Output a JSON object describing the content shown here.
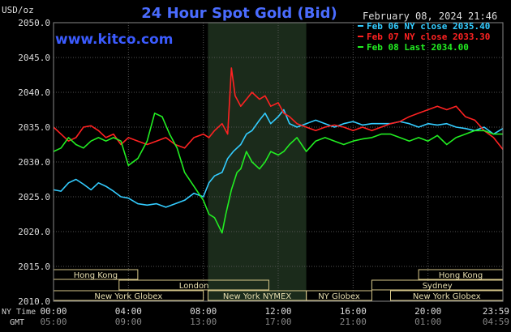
{
  "chart_data": {
    "type": "line",
    "title": "24 Hour Spot Gold (Bid)",
    "ylabel": "USD/oz",
    "date_label": "February 08, 2024 21:46",
    "source": "www.kitco.com",
    "ylim": [
      2010,
      2050
    ],
    "xlim": [
      0,
      24
    ],
    "y_ticks": [
      "2050.0",
      "2045.0",
      "2040.0",
      "2035.0",
      "2030.0",
      "2025.0",
      "2020.0",
      "2015.0",
      "2010.0"
    ],
    "y_tick_values": [
      2050,
      2045,
      2040,
      2035,
      2030,
      2025,
      2020,
      2015,
      2010
    ],
    "x_ticks_ny": [
      "00:00",
      "04:00",
      "08:00",
      "12:00",
      "16:00",
      "20:00",
      "23:59"
    ],
    "x_ticks_gmt": [
      "05:00",
      "09:00",
      "13:00",
      "17:00",
      "21:00",
      "01:00",
      "04:59"
    ],
    "x_tick_hours": [
      0,
      4,
      8,
      12,
      16,
      20,
      24
    ],
    "row_label_ny": "NY Time",
    "row_label_gmt": "GMT",
    "highlight_hours": [
      8.25,
      13.5
    ],
    "legend": [
      {
        "label": "Feb 06 NY close 2035.40",
        "color": "#33ccff"
      },
      {
        "label": "Feb 07 NY close 2033.30",
        "color": "#ff2222"
      },
      {
        "label": "Feb 08 Last 2034.00",
        "color": "#22ee22"
      }
    ],
    "sessions": [
      {
        "name": "Hong Kong",
        "start": 0,
        "end": 4.5,
        "row": 0
      },
      {
        "name": "Hong Kong",
        "start": 19.5,
        "end": 24,
        "row": 0
      },
      {
        "name": "London",
        "start": 3.5,
        "end": 11.5,
        "row": 1
      },
      {
        "name": "Sydney",
        "start": 17.0,
        "end": 24,
        "row": 1
      },
      {
        "name": "New York Globex",
        "start": 0,
        "end": 8.0,
        "row": 2
      },
      {
        "name": "New York NYMEX",
        "start": 8.25,
        "end": 13.5,
        "row": 2
      },
      {
        "name": "NY Globex",
        "start": 13.5,
        "end": 17.0,
        "row": 2
      },
      {
        "name": "New York Globex",
        "start": 18.0,
        "end": 24,
        "row": 2
      }
    ],
    "series": [
      {
        "name": "Feb 06 NY close 2035.40",
        "color": "#33ccff",
        "x": [
          0,
          0.4,
          0.8,
          1.2,
          1.6,
          2.0,
          2.4,
          2.8,
          3.2,
          3.6,
          4.0,
          4.5,
          5.0,
          5.5,
          6.0,
          6.5,
          7.0,
          7.5,
          8.0,
          8.3,
          8.6,
          9.0,
          9.3,
          9.6,
          10.0,
          10.3,
          10.6,
          11.0,
          11.3,
          11.6,
          12.0,
          12.3,
          12.6,
          13.0,
          13.5,
          14.0,
          14.5,
          15.0,
          15.5,
          16.0,
          16.5,
          17.0,
          17.5,
          18.0,
          18.5,
          19.0,
          19.5,
          20.0,
          20.5,
          21.0,
          21.5,
          22.0,
          22.5,
          23.0,
          23.5,
          24.0
        ],
        "y": [
          2026.0,
          2025.8,
          2027.0,
          2027.5,
          2026.8,
          2026.0,
          2027.0,
          2026.5,
          2025.8,
          2025.0,
          2024.8,
          2024.0,
          2023.8,
          2024.0,
          2023.5,
          2024.0,
          2024.5,
          2025.5,
          2025.0,
          2027.0,
          2028.0,
          2028.5,
          2030.5,
          2031.5,
          2032.5,
          2034.0,
          2034.5,
          2036.0,
          2037.0,
          2035.5,
          2036.5,
          2037.5,
          2035.5,
          2035.0,
          2035.5,
          2036.0,
          2035.5,
          2035.0,
          2035.5,
          2035.8,
          2035.3,
          2035.5,
          2035.5,
          2035.5,
          2035.8,
          2035.5,
          2035.0,
          2035.5,
          2035.3,
          2035.5,
          2035.0,
          2034.8,
          2034.5,
          2035.0,
          2034.0,
          2034.8
        ]
      },
      {
        "name": "Feb 07 NY close 2033.30",
        "color": "#ff2222",
        "x": [
          0,
          0.4,
          0.8,
          1.2,
          1.6,
          2.0,
          2.4,
          2.8,
          3.2,
          3.6,
          4.0,
          4.5,
          5.0,
          5.5,
          6.0,
          6.5,
          7.0,
          7.5,
          8.0,
          8.3,
          8.6,
          9.0,
          9.3,
          9.5,
          9.7,
          10.0,
          10.3,
          10.6,
          11.0,
          11.3,
          11.6,
          12.0,
          12.3,
          12.6,
          13.0,
          13.5,
          14.0,
          14.5,
          15.0,
          15.5,
          16.0,
          16.5,
          17.0,
          17.5,
          18.0,
          18.5,
          19.0,
          19.5,
          20.0,
          20.5,
          21.0,
          21.5,
          22.0,
          22.5,
          23.0,
          23.5,
          24.0
        ],
        "y": [
          2035.0,
          2034.0,
          2033.0,
          2033.5,
          2035.0,
          2035.2,
          2034.5,
          2033.5,
          2034.0,
          2032.5,
          2033.5,
          2033.0,
          2032.5,
          2033.0,
          2033.5,
          2032.5,
          2032.0,
          2033.5,
          2034.0,
          2033.5,
          2034.5,
          2035.5,
          2034.0,
          2043.5,
          2039.5,
          2038.0,
          2039.0,
          2040.0,
          2039.0,
          2039.5,
          2038.0,
          2038.5,
          2037.0,
          2036.5,
          2035.5,
          2035.0,
          2034.5,
          2035.0,
          2035.3,
          2035.0,
          2034.5,
          2035.0,
          2034.5,
          2035.0,
          2035.5,
          2035.8,
          2036.5,
          2037.0,
          2037.5,
          2038.0,
          2037.5,
          2038.0,
          2036.5,
          2036.0,
          2034.5,
          2033.5,
          2031.8
        ]
      },
      {
        "name": "Feb 08 Last 2034.00",
        "color": "#22ee22",
        "x": [
          0,
          0.4,
          0.8,
          1.2,
          1.6,
          2.0,
          2.4,
          2.8,
          3.2,
          3.6,
          4.0,
          4.5,
          5.0,
          5.4,
          5.8,
          6.2,
          6.6,
          7.0,
          7.5,
          8.0,
          8.3,
          8.6,
          9.0,
          9.2,
          9.5,
          9.8,
          10.0,
          10.3,
          10.6,
          11.0,
          11.3,
          11.6,
          12.0,
          12.3,
          12.6,
          13.0,
          13.5,
          14.0,
          14.5,
          15.0,
          15.5,
          16.0,
          16.5,
          17.0,
          17.5,
          18.0,
          18.5,
          19.0,
          19.5,
          20.0,
          20.5,
          21.0,
          21.5,
          22.0,
          22.5,
          23.0,
          23.5,
          24.0
        ],
        "y": [
          2031.5,
          2032.0,
          2033.5,
          2032.5,
          2032.0,
          2033.0,
          2033.5,
          2033.0,
          2033.5,
          2033.0,
          2029.5,
          2030.5,
          2033.0,
          2037.0,
          2036.5,
          2034.0,
          2032.0,
          2028.5,
          2026.5,
          2024.5,
          2022.5,
          2022.0,
          2019.8,
          2022.5,
          2026.0,
          2028.5,
          2029.0,
          2031.5,
          2030.0,
          2029.0,
          2030.0,
          2031.5,
          2031.0,
          2031.5,
          2032.5,
          2033.5,
          2031.5,
          2033.0,
          2033.5,
          2033.0,
          2032.5,
          2033.0,
          2033.3,
          2033.5,
          2034.0,
          2034.0,
          2033.5,
          2033.0,
          2033.5,
          2033.0,
          2033.8,
          2032.5,
          2033.5,
          2034.0,
          2034.5,
          2034.5,
          2034.0,
          2034.0
        ]
      }
    ]
  }
}
